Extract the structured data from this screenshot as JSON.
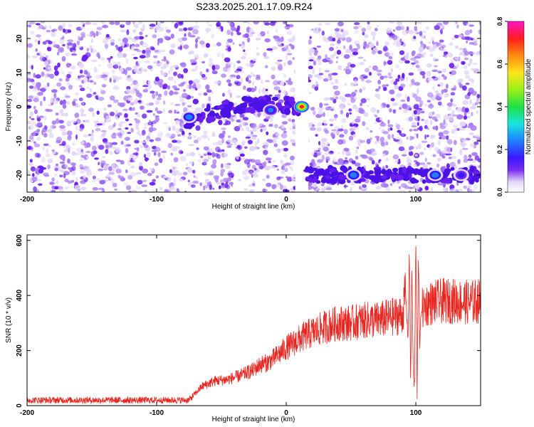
{
  "title": "S233.2025.201.17.09.R24",
  "colors": {
    "spec_dark": "#6a1ff0",
    "spec_mid": "#a97cf2",
    "spec_light": "#e2d6f8",
    "snr_line": "#e8261f"
  },
  "chart_data": [
    {
      "type": "heatmap",
      "xlabel": "Height of straight line (km)",
      "ylabel": "Frequency (Hz)",
      "xlim": [
        -200,
        150
      ],
      "ylim": [
        -25,
        25
      ],
      "xticks": [
        -200,
        -100,
        0,
        100
      ],
      "yticks": [
        20,
        10,
        0,
        -10,
        -20
      ],
      "colorbar": {
        "label": "Normalized spectral amplitude",
        "range": [
          0.0,
          0.8
        ],
        "ticks": [
          "0.0",
          "0.2",
          "0.4",
          "0.6",
          "0.8"
        ],
        "colormap": "rainbow"
      },
      "gap": {
        "x_from": 7,
        "x_to": 17
      },
      "ridges": [
        {
          "x": [
            -78,
            -60,
            -40,
            -20,
            0,
            10
          ],
          "freq": [
            -4,
            -2,
            0,
            1,
            0.5,
            0
          ]
        },
        {
          "x": [
            15,
            150
          ],
          "freq": [
            -20,
            -20
          ]
        }
      ],
      "peaks": [
        {
          "x": 12,
          "freq": 0,
          "amplitude": 0.75
        },
        {
          "x": -12,
          "freq": -1,
          "amplitude": 0.3
        },
        {
          "x": -75,
          "freq": -3,
          "amplitude": 0.25
        },
        {
          "x": 52,
          "freq": -20,
          "amplitude": 0.25
        },
        {
          "x": 115,
          "freq": -20,
          "amplitude": 0.25
        },
        {
          "x": 135,
          "freq": -20,
          "amplitude": 0.22
        }
      ]
    },
    {
      "type": "line",
      "xlabel": "Height of straight line (km)",
      "ylabel": "SNR (10 * v/v)",
      "xlim": [
        -200,
        150
      ],
      "ylim": [
        0,
        620
      ],
      "xticks": [
        -200,
        -100,
        0,
        100
      ],
      "yticks": [
        0,
        200,
        400,
        600
      ],
      "series": [
        {
          "x": [
            -200,
            -150,
            -100,
            -75,
            -65,
            -55,
            -45,
            -35,
            -25,
            -20,
            -15,
            -10,
            -5,
            0,
            5,
            10,
            15,
            20,
            25,
            30,
            40,
            50,
            60,
            70,
            80,
            90,
            92,
            94,
            95,
            96,
            97,
            98,
            99,
            100,
            101,
            102,
            103,
            104,
            106,
            110,
            120,
            130,
            140,
            150
          ],
          "y": [
            20,
            20,
            20,
            20,
            70,
            90,
            95,
            110,
            130,
            150,
            155,
            170,
            190,
            210,
            225,
            240,
            255,
            265,
            275,
            285,
            300,
            300,
            310,
            310,
            320,
            330,
            420,
            240,
            560,
            80,
            520,
            120,
            60,
            610,
            40,
            560,
            200,
            340,
            360,
            370,
            380,
            380,
            375,
            380
          ]
        }
      ]
    }
  ]
}
